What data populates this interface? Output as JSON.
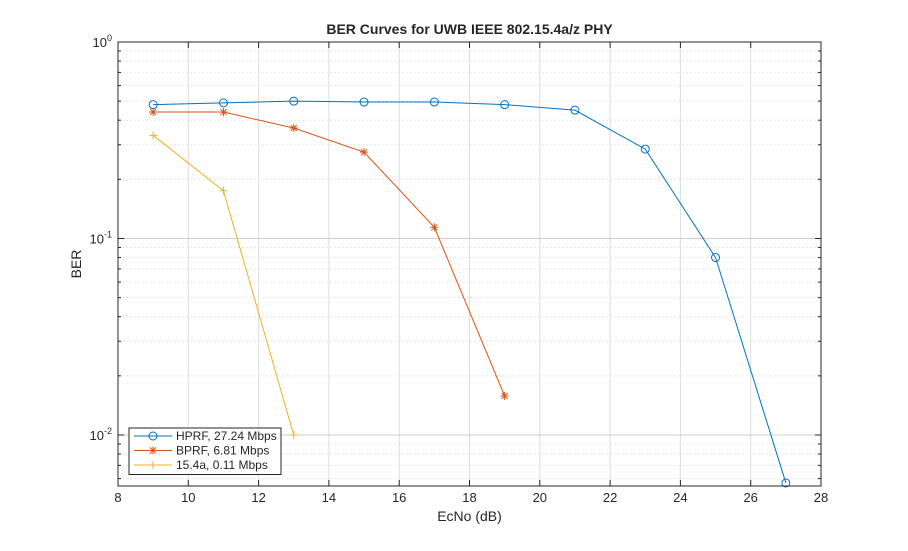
{
  "chart_data": {
    "type": "line",
    "title": "BER Curves for UWB IEEE 802.15.4a/z PHY",
    "xlabel": "EcNo (dB)",
    "ylabel": "BER",
    "xlim": [
      8,
      28
    ],
    "ylim": [
      0.0055,
      1
    ],
    "yscale": "log",
    "grid": true,
    "minor_grid": true,
    "legend_position": "bottom-left",
    "xticks": [
      8,
      10,
      12,
      14,
      16,
      18,
      20,
      22,
      24,
      26,
      28
    ],
    "yticks": [
      {
        "value": 0.01,
        "base": "10",
        "exp": "-2"
      },
      {
        "value": 0.1,
        "base": "10",
        "exp": "-1"
      },
      {
        "value": 1,
        "base": "10",
        "exp": "0"
      }
    ],
    "series": [
      {
        "name": "HPRF, 27.24 Mbps",
        "color": "#0072BD",
        "marker": "circle",
        "x": [
          9,
          11,
          13,
          15,
          17,
          19,
          21,
          23,
          25,
          27
        ],
        "y": [
          0.48,
          0.49,
          0.5,
          0.495,
          0.495,
          0.48,
          0.45,
          0.285,
          0.08,
          0.0057
        ]
      },
      {
        "name": "BPRF, 6.81 Mbps",
        "color": "#D95319",
        "marker": "asterisk",
        "x": [
          9,
          11,
          13,
          15,
          17,
          19
        ],
        "y": [
          0.44,
          0.44,
          0.365,
          0.275,
          0.114,
          0.0158
        ]
      },
      {
        "name": "15.4a, 0.11 Mbps",
        "color": "#EDB120",
        "marker": "plus",
        "x": [
          9,
          11,
          13
        ],
        "y": [
          0.335,
          0.175,
          0.01
        ]
      }
    ]
  }
}
